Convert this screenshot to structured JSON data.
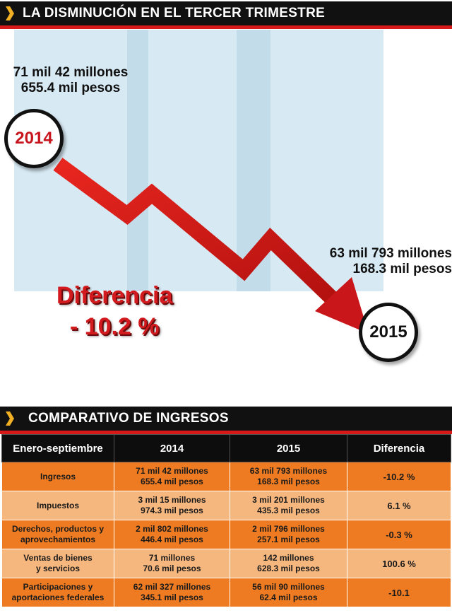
{
  "banners": {
    "chart_title": "LA DISMINUCIÓN EN EL TERCER TRIMESTRE",
    "table_title": "COMPARATIVO DE INGRESOS"
  },
  "chart_data": {
    "type": "line",
    "title": "LA DISMINUCIÓN EN EL TERCER TRIMESTRE",
    "categories": [
      "2014",
      "2015"
    ],
    "values": [
      71042655.4,
      63793168.3
    ],
    "value_labels": [
      [
        "71 mil  42 millones",
        "655.4 mil pesos"
      ],
      [
        "63 mil 793 millones",
        "168.3 mil pesos"
      ]
    ],
    "difference_label": "Diferencia",
    "difference_value": "- 10.2 %",
    "series": [
      {
        "values": [
          71042655.4,
          63793168.3
        ]
      }
    ]
  },
  "table": {
    "headers": [
      "Enero-septiembre",
      "2014",
      "2015",
      "Diferencia"
    ],
    "rows": [
      {
        "label": [
          "Ingresos"
        ],
        "y2014": [
          "71 mil 42 millones",
          "655.4 mil pesos"
        ],
        "y2015": [
          "63 mil 793 millones",
          "168.3 mil pesos"
        ],
        "diff": "-10.2 %"
      },
      {
        "label": [
          "Impuestos"
        ],
        "y2014": [
          "3 mil 15 millones",
          "974.3 mil pesos"
        ],
        "y2015": [
          "3 mil 201 millones",
          "435.3 mil pesos"
        ],
        "diff": "6.1 %"
      },
      {
        "label": [
          "Derechos, productos y",
          "aprovechamientos"
        ],
        "y2014": [
          "2 mil 802 millones",
          "446.4 mil pesos"
        ],
        "y2015": [
          "2 mil 796 millones",
          "257.1 mil pesos"
        ],
        "diff": "-0.3 %"
      },
      {
        "label": [
          "Ventas de bienes",
          "y servicios"
        ],
        "y2014": [
          "71 millones",
          "70.6 mil pesos"
        ],
        "y2015": [
          "142 millones",
          "628.3 mil pesos"
        ],
        "diff": "100.6 %"
      },
      {
        "label": [
          "Participaciones y",
          "aportaciones federales"
        ],
        "y2014": [
          "62 mil 327 millones",
          "345.1 mil pesos"
        ],
        "y2015": [
          "56 mil 90 millones",
          "62.4 mil pesos"
        ],
        "diff": "-10.1"
      }
    ]
  },
  "colors": {
    "accent_red": "#d8191a",
    "banner_black": "#111111",
    "stripe_blue": "#d7e9f3",
    "row_orange_dark": "#ee7b22",
    "row_orange_light": "#f6b77f"
  }
}
